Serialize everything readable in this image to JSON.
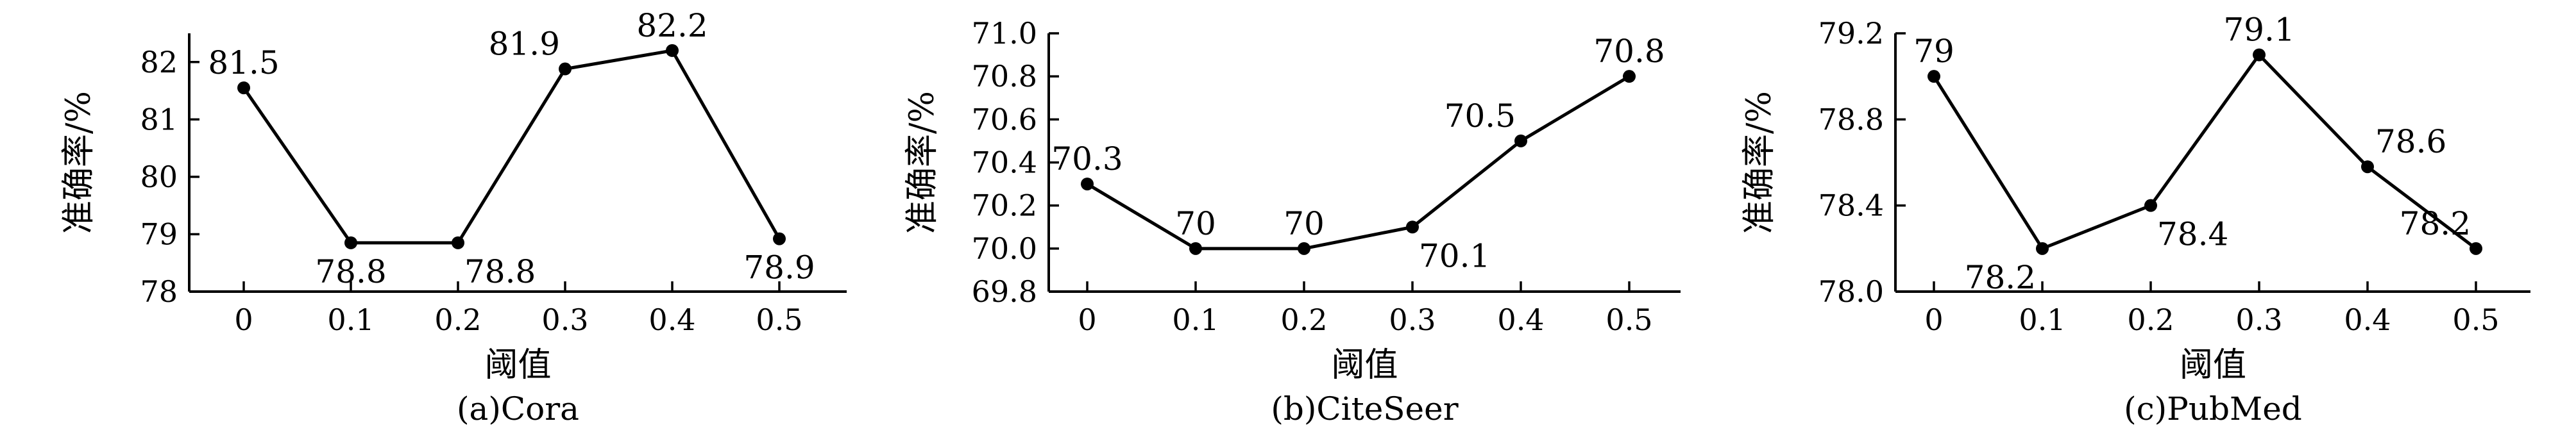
{
  "chart_data": [
    {
      "type": "line",
      "caption": "(a)Cora",
      "xlabel": "阈值",
      "ylabel": "准确率/%",
      "x": [
        0,
        0.1,
        0.2,
        0.3,
        0.4,
        0.5
      ],
      "x_tick_labels": [
        "0",
        "0.1",
        "0.2",
        "0.3",
        "0.4",
        "0.5"
      ],
      "y": [
        81.55,
        78.85,
        78.85,
        81.88,
        82.2,
        78.92
      ],
      "data_labels": [
        "81.5",
        "78.8",
        "78.8",
        "81.9",
        "82.2",
        "78.9"
      ],
      "label_positions": [
        "above",
        "below",
        "below-right",
        "above-left",
        "above",
        "below"
      ],
      "ylim": [
        78,
        82.5
      ],
      "y_ticks": [
        78,
        79,
        80,
        81,
        82
      ],
      "y_tick_labels": [
        "78",
        "79",
        "80",
        "81",
        "82"
      ],
      "grid": false
    },
    {
      "type": "line",
      "caption": "(b)CiteSeer",
      "xlabel": "阈值",
      "ylabel": "准确率/%",
      "x": [
        0,
        0.1,
        0.2,
        0.3,
        0.4,
        0.5
      ],
      "x_tick_labels": [
        "0",
        "0.1",
        "0.2",
        "0.3",
        "0.4",
        "0.5"
      ],
      "y": [
        70.3,
        70.0,
        70.0,
        70.1,
        70.5,
        70.8
      ],
      "data_labels": [
        "70.3",
        "70",
        "70",
        "70.1",
        "70.5",
        "70.8"
      ],
      "label_positions": [
        "above",
        "above",
        "above",
        "below-right",
        "above-left",
        "above"
      ],
      "ylim": [
        69.8,
        71.0
      ],
      "y_ticks": [
        69.8,
        70.0,
        70.2,
        70.4,
        70.6,
        70.8,
        71.0
      ],
      "y_tick_labels": [
        "69.8",
        "70.0",
        "70.2",
        "70.4",
        "70.6",
        "70.8",
        "71.0"
      ],
      "grid": false
    },
    {
      "type": "line",
      "caption": "(c)PubMed",
      "xlabel": "阈值",
      "ylabel": "准确率/%",
      "x": [
        0,
        0.1,
        0.2,
        0.3,
        0.4,
        0.5
      ],
      "x_tick_labels": [
        "0",
        "0.1",
        "0.2",
        "0.3",
        "0.4",
        "0.5"
      ],
      "y": [
        79.0,
        78.2,
        78.4,
        79.1,
        78.58,
        78.2
      ],
      "data_labels": [
        "79",
        "78.2",
        "78.4",
        "79.1",
        "78.6",
        "78.2"
      ],
      "label_positions": [
        "above",
        "below-left",
        "below-right",
        "above",
        "above-right",
        "above-left"
      ],
      "ylim": [
        78.0,
        79.2
      ],
      "y_ticks": [
        78.0,
        78.4,
        78.8,
        79.2
      ],
      "y_tick_labels": [
        "78.0",
        "78.4",
        "78.8",
        "79.2"
      ],
      "grid": false
    }
  ]
}
